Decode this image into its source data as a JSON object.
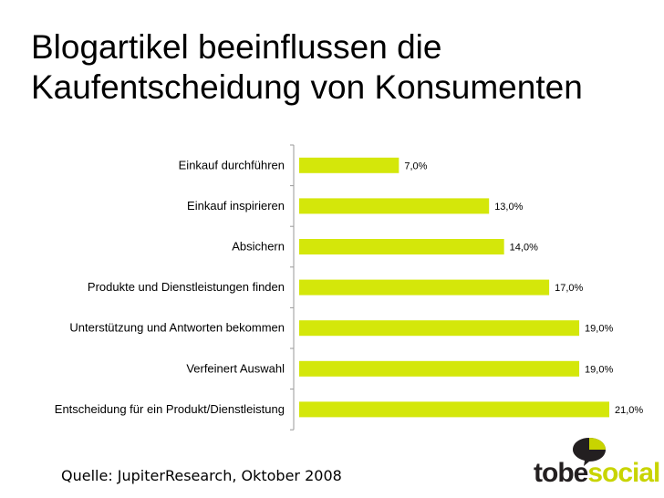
{
  "title": "Blogartikel beeinflussen die\nKaufentscheidung von Konsumenten",
  "source": "Quelle: JupiterResearch, Oktober 2008",
  "logo": {
    "text_dark": "tobe",
    "text_light": "social",
    "icon": "speech-bubble-icon"
  },
  "colors": {
    "bar": "#d4e70a",
    "logo_green": "#c8d400",
    "logo_dark": "#231f20",
    "axis": "#999999"
  },
  "chart_data": {
    "type": "bar",
    "orientation": "horizontal",
    "title": "Blogartikel beeinflussen die Kaufentscheidung von Konsumenten",
    "xlabel": "",
    "ylabel": "",
    "xlim": [
      0,
      22
    ],
    "grid": false,
    "categories": [
      "Einkauf durchführen",
      "Einkauf inspirieren",
      "Absichern",
      "Produkte und Dienstleistungen finden",
      "Unterstützung und Antworten bekommen",
      "Verfeinert Auswahl",
      "Entscheidung für ein Produkt/Dienstleistung"
    ],
    "values": [
      7.0,
      13.0,
      14.0,
      17.0,
      19.0,
      19.0,
      21.0
    ],
    "value_labels": [
      "7,0%",
      "13,0%",
      "14,0%",
      "17,0%",
      "19,0%",
      "19,0%",
      "21,0%"
    ]
  }
}
